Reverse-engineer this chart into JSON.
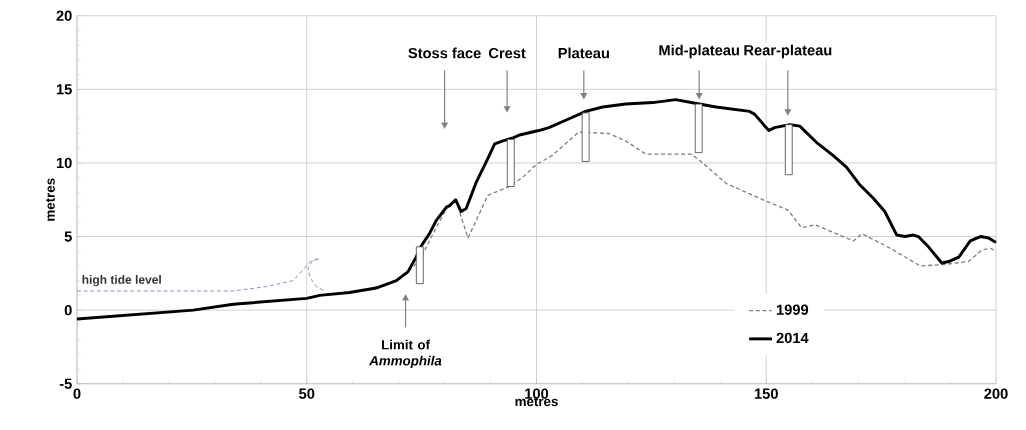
{
  "chart_data": {
    "type": "line",
    "xlabel": "metres",
    "ylabel": "metres",
    "xlim": [
      0,
      200
    ],
    "ylim": [
      -5,
      20
    ],
    "xticks": [
      0,
      50,
      100,
      150,
      200
    ],
    "yticks": [
      -5,
      0,
      5,
      10,
      15,
      20
    ],
    "grid": true,
    "legend": "bottom right",
    "series": [
      {
        "name": "1999",
        "color": "#808080",
        "line_style": "dashed",
        "x": [
          69.9,
          71.7,
          74.6,
          77.5,
          80.4,
          82.4,
          85.1,
          89.4,
          94.1,
          96.9,
          100,
          103.4,
          109.2,
          115.7,
          119.4,
          123.8,
          133.6,
          135.4,
          141.3,
          150,
          154.7,
          157.7,
          160.6,
          169,
          170.8,
          177,
          183.5,
          188.6,
          194,
          197,
          198.8,
          200
        ],
        "values": [
          2.1,
          2.5,
          3.4,
          5.2,
          6.9,
          7.5,
          4.9,
          7.8,
          8.4,
          9.0,
          9.9,
          10.5,
          12.1,
          12.0,
          11.5,
          10.6,
          10.6,
          10.2,
          8.6,
          7.4,
          6.8,
          5.6,
          5.8,
          4.7,
          5.2,
          4.2,
          3.0,
          3.1,
          3.3,
          4.1,
          4.2,
          4.0
        ]
      },
      {
        "name": "2014",
        "color": "#000000",
        "line_style": "solid",
        "x": [
          0,
          25.3,
          34,
          50,
          52.8,
          59.3,
          65.1,
          69.5,
          72,
          73.8,
          75,
          76.7,
          78.2,
          80.4,
          81.1,
          82.4,
          83.6,
          84.7,
          86.9,
          89.4,
          90.9,
          92.7,
          94.9,
          96.3,
          100.5,
          102.7,
          107.1,
          110.7,
          114.4,
          119.4,
          125.3,
          130.3,
          135.4,
          139.1,
          146.4,
          147.5,
          149.7,
          150.6,
          151.8,
          155.1,
          157.3,
          160.9,
          164.6,
          167.5,
          170.4,
          173.3,
          175.8,
          178.4,
          180.2,
          182,
          183.1,
          185.3,
          188.2,
          189.7,
          191.9,
          194.4,
          196.6,
          198.4,
          200
        ],
        "values": [
          -0.6,
          0.0,
          0.4,
          0.8,
          1.0,
          1.2,
          1.5,
          2.0,
          2.6,
          3.6,
          4.4,
          5.2,
          6.1,
          7.0,
          7.1,
          7.5,
          6.7,
          6.9,
          8.7,
          10.3,
          11.3,
          11.5,
          11.7,
          11.9,
          12.2,
          12.4,
          13.0,
          13.5,
          13.8,
          14.0,
          14.1,
          14.3,
          14.0,
          13.8,
          13.5,
          13.3,
          12.5,
          12.2,
          12.4,
          12.6,
          12.5,
          11.4,
          10.5,
          9.7,
          8.5,
          7.6,
          6.7,
          5.1,
          5.0,
          5.1,
          5.0,
          4.3,
          3.2,
          3.3,
          3.6,
          4.7,
          5.0,
          4.9,
          4.6
        ]
      },
      {
        "name": "high tide level",
        "type": "line",
        "color": "#7f8db0",
        "line_style": "dashed",
        "x": [
          0,
          34,
          41.2,
          47,
          48.8,
          50.7,
          52.8,
          51.4,
          50.3,
          50.7,
          52.1,
          53.9
        ],
        "values": [
          1.3,
          1.3,
          1.6,
          2.0,
          2.6,
          3.3,
          3.5,
          3.4,
          2.9,
          2.2,
          1.6,
          1.3
        ]
      },
      {
        "type": "bar",
        "color": "#ffffff",
        "x": [
          74.6,
          94.4,
          110.7,
          135.3,
          154.9
        ],
        "base": [
          1.8,
          8.4,
          10.1,
          10.7,
          9.2
        ],
        "values": [
          2.5,
          3.2,
          3.3,
          3.3,
          3.4
        ]
      }
    ],
    "annotations": [
      "Stoss face",
      "Crest",
      "Plateau",
      "Mid-plateau",
      "Rear-plateau",
      "Limit of *Ammophila*"
    ]
  }
}
